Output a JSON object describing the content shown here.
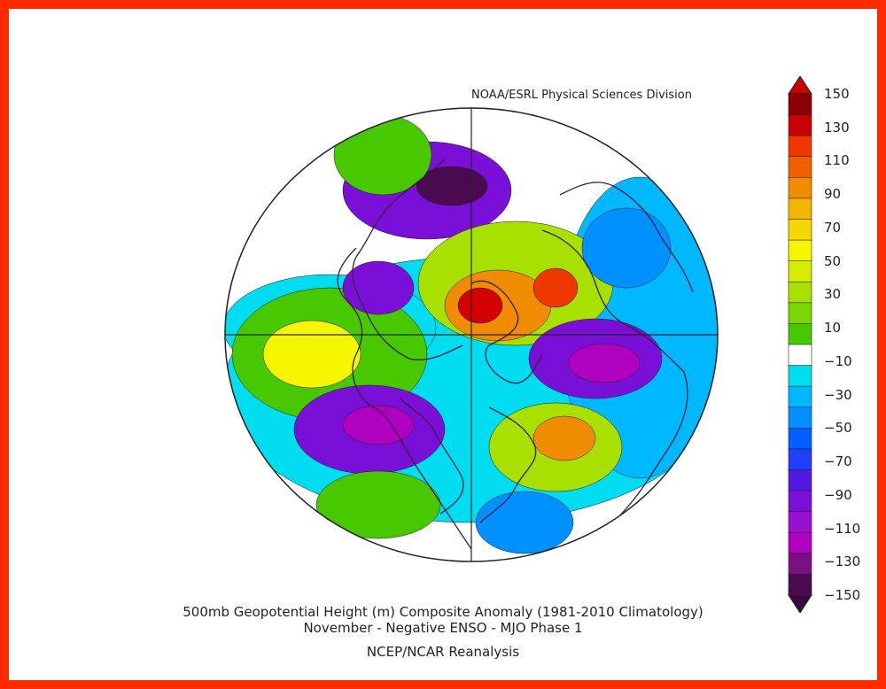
{
  "credit": "NOAA/ESRL Physical Sciences Division",
  "title": {
    "line1": "500mb Geopotential Height (m) Composite Anomaly (1981-2010 Climatology)",
    "line2": "November - Negative ENSO - MJO Phase 1",
    "line3": "NCEP/NCAR Reanalysis"
  },
  "colorbar": {
    "labels": [
      "150",
      "130",
      "110",
      "90",
      "70",
      "50",
      "30",
      "10",
      "-10",
      "-30",
      "-50",
      "-70",
      "-90",
      "-110",
      "-130",
      "-150"
    ],
    "colors": [
      "#8b0000",
      "#c80000",
      "#ee3800",
      "#f06000",
      "#f08c00",
      "#f4b400",
      "#f6d800",
      "#f6f600",
      "#d6ec00",
      "#a8e000",
      "#78d800",
      "#48c800",
      "#ffffff",
      "#00dcf0",
      "#00b8ff",
      "#0090ff",
      "#0060ff",
      "#2040ff",
      "#5018e0",
      "#7a10d8",
      "#9810d0",
      "#b000c0",
      "#7a1080",
      "#4a0a50"
    ],
    "extend_top": "#c80000",
    "extend_bottom": "#3a0840"
  },
  "anomaly_centers": [
    {
      "region": "Alaska / Bering Sea",
      "sign": "negative",
      "value": -150
    },
    {
      "region": "North Pacific / Aleutians",
      "sign": "positive",
      "value": 130
    },
    {
      "region": "Central Pacific",
      "sign": "positive",
      "value": 90
    },
    {
      "region": "Greenland",
      "sign": "positive",
      "value": 150
    },
    {
      "region": "Eastern Canada",
      "sign": "negative",
      "value": -110
    },
    {
      "region": "Western North Atlantic",
      "sign": "negative",
      "value": -110
    },
    {
      "region": "Scandinavia",
      "sign": "positive",
      "value": 110
    },
    {
      "region": "Siberia",
      "sign": "negative",
      "value": -110
    },
    {
      "region": "Japan / NW Pacific",
      "sign": "negative",
      "value": -70
    },
    {
      "region": "Southeastern United States",
      "sign": "negative",
      "value": -50
    },
    {
      "region": "Eastern Mediterranean",
      "sign": "positive",
      "value": 50
    }
  ]
}
